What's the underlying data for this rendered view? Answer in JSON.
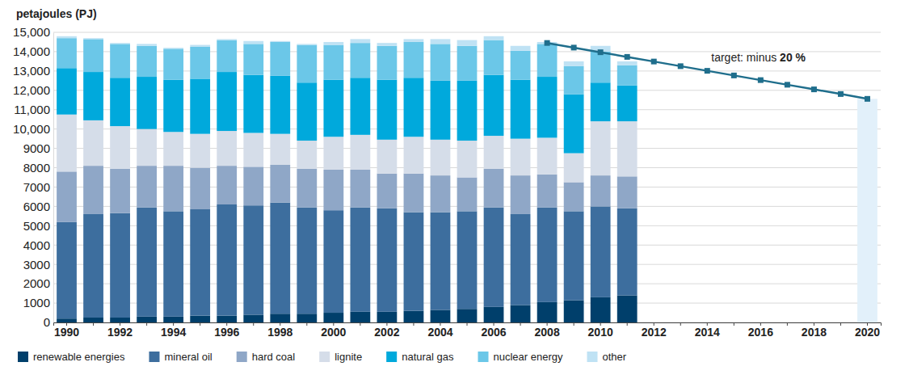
{
  "chart_data": {
    "type": "bar",
    "stacked": true,
    "grid": true,
    "legend": "bottom",
    "y_label": "petajoules (PJ)",
    "categories": [
      "1990",
      null,
      "1992",
      null,
      "1994",
      null,
      "1996",
      null,
      "1998",
      null,
      "2000",
      null,
      "2002",
      null,
      "2004",
      null,
      "2006",
      null,
      "2008",
      null,
      "2010",
      null,
      "2012",
      null,
      "2014",
      null,
      "2016",
      null,
      "2018",
      null,
      "2020"
    ],
    "ylim": [
      0,
      15000
    ],
    "yticks": [
      0,
      1000,
      2000,
      3000,
      4000,
      5000,
      6000,
      7000,
      8000,
      9000,
      {
        "value": 10000,
        "label": "10,000"
      },
      {
        "value": 11000,
        "label": "11,000"
      },
      {
        "value": 12000,
        "label": "12,000"
      },
      {
        "value": 13000,
        "label": "13,000"
      },
      {
        "value": 14000,
        "label": "14,000"
      },
      {
        "value": 15000,
        "label": "15,000"
      }
    ],
    "series": [
      {
        "name": "renewable energies",
        "color": "#003f6b",
        "values": [
          200,
          250,
          250,
          300,
          300,
          350,
          350,
          400,
          450,
          450,
          500,
          550,
          550,
          600,
          650,
          700,
          800,
          900,
          1050,
          1150,
          1300,
          1400,
          null,
          null,
          null,
          null,
          null,
          null,
          null,
          null,
          null
        ]
      },
      {
        "name": "mineral oil",
        "color": "#3d6e9e",
        "values": [
          5000,
          5350,
          5400,
          5650,
          5450,
          5500,
          5750,
          5650,
          5750,
          5500,
          5300,
          5400,
          5350,
          5100,
          5050,
          5050,
          5150,
          4700,
          4900,
          4600,
          4700,
          4500,
          null,
          null,
          null,
          null,
          null,
          null,
          null,
          null,
          null
        ]
      },
      {
        "name": "hard coal",
        "color": "#8fa7c7",
        "values": [
          2600,
          2500,
          2300,
          2150,
          2350,
          2150,
          2000,
          2000,
          1950,
          2000,
          2100,
          1950,
          1800,
          2000,
          1900,
          1750,
          2000,
          2000,
          1700,
          1500,
          1600,
          1650,
          null,
          null,
          null,
          null,
          null,
          null,
          null,
          null,
          null
        ]
      },
      {
        "name": "lignite",
        "color": "#d5dde9",
        "values": [
          2950,
          2350,
          2200,
          1900,
          1750,
          1750,
          1800,
          1750,
          1600,
          1450,
          1700,
          1800,
          1750,
          1900,
          1850,
          1900,
          1700,
          1900,
          1900,
          1500,
          2800,
          2850,
          null,
          null,
          null,
          null,
          null,
          null,
          null,
          null,
          null
        ]
      },
      {
        "name": "natural gas",
        "color": "#00a9dc",
        "values": [
          2400,
          2500,
          2500,
          2700,
          2700,
          2850,
          3050,
          3000,
          3000,
          3000,
          2950,
          2950,
          3100,
          3050,
          3050,
          3100,
          3150,
          3050,
          3150,
          3050,
          2000,
          1850,
          null,
          null,
          null,
          null,
          null,
          null,
          null,
          null,
          null
        ]
      },
      {
        "name": "nuclear energy",
        "color": "#6bc7e8",
        "values": [
          1550,
          1700,
          1750,
          1600,
          1600,
          1650,
          1650,
          1600,
          1750,
          1950,
          1800,
          1800,
          1750,
          1850,
          1900,
          1800,
          1800,
          1500,
          1700,
          1450,
          1600,
          1050,
          null,
          null,
          null,
          null,
          null,
          null,
          null,
          null,
          null
        ]
      },
      {
        "name": "other",
        "color": "#bfe2f4",
        "values": [
          100,
          50,
          50,
          100,
          50,
          100,
          50,
          150,
          50,
          50,
          150,
          200,
          150,
          150,
          250,
          300,
          200,
          250,
          100,
          250,
          300,
          200,
          null,
          null,
          null,
          null,
          null,
          null,
          null,
          null,
          null
        ]
      },
      {
        "name": "target: minus 20 %",
        "type": "line",
        "color": "#1f6e8c",
        "marker": "square",
        "values": [
          null,
          null,
          null,
          null,
          null,
          null,
          null,
          null,
          null,
          null,
          null,
          null,
          null,
          null,
          null,
          null,
          null,
          null,
          14450,
          14210,
          13970,
          13730,
          13490,
          13250,
          13010,
          12770,
          12530,
          12290,
          12050,
          11810,
          11560
        ]
      }
    ]
  }
}
